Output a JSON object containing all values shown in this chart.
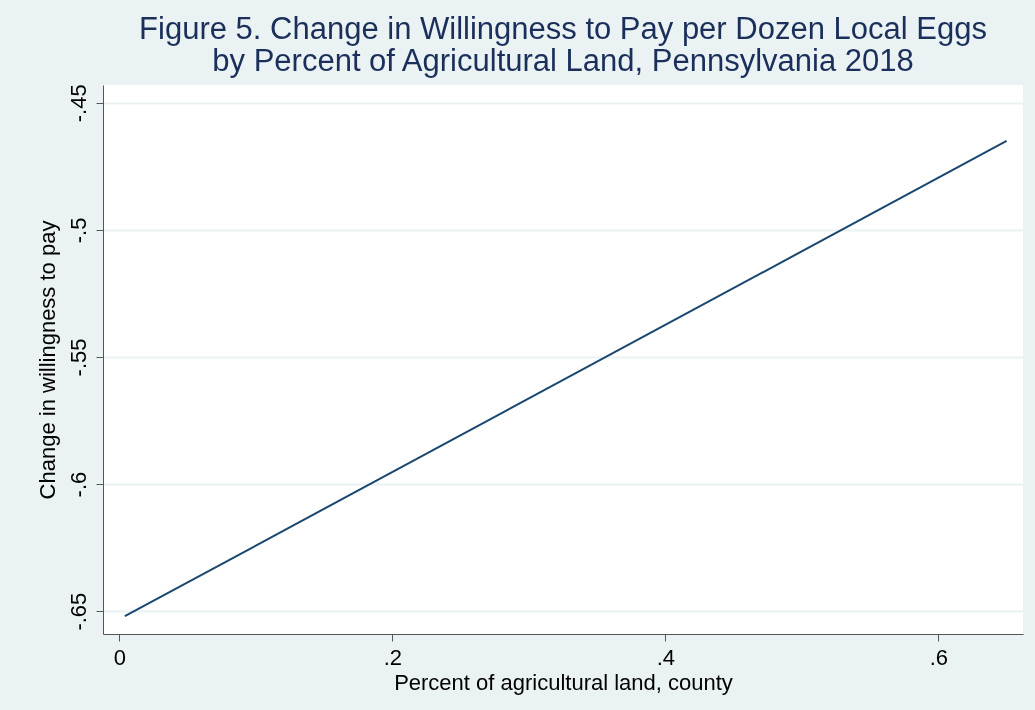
{
  "chart_data": {
    "type": "line",
    "title": "Figure 5. Change in Willingness to Pay per Dozen Local Eggs by Percent of Agricultural Land, Pennsylvania 2018",
    "xlabel": "Percent of agricultural land, county",
    "ylabel": "Change in willingness to pay",
    "x": [
      0.004,
      0.65
    ],
    "series": [
      {
        "color": "#1a476f",
        "values": [
          -0.652,
          -0.465
        ]
      }
    ],
    "xlim": [
      -0.012,
      0.662
    ],
    "xticks": [
      0,
      {
        "value": 0.2,
        "label": ".2"
      },
      {
        "value": 0.4,
        "label": ".4"
      },
      {
        "value": 0.6,
        "label": ".6"
      }
    ],
    "ylim": [
      -0.659,
      -0.443
    ],
    "yticks": [
      {
        "value": -0.65,
        "label": "-.65"
      },
      {
        "value": -0.6,
        "label": "-.6"
      },
      {
        "value": -0.55,
        "label": "-.55"
      },
      {
        "value": -0.5,
        "label": "-.5"
      },
      {
        "value": -0.45,
        "label": "-.45"
      }
    ],
    "grid": "y",
    "marker": "none",
    "line_style": "solid"
  }
}
